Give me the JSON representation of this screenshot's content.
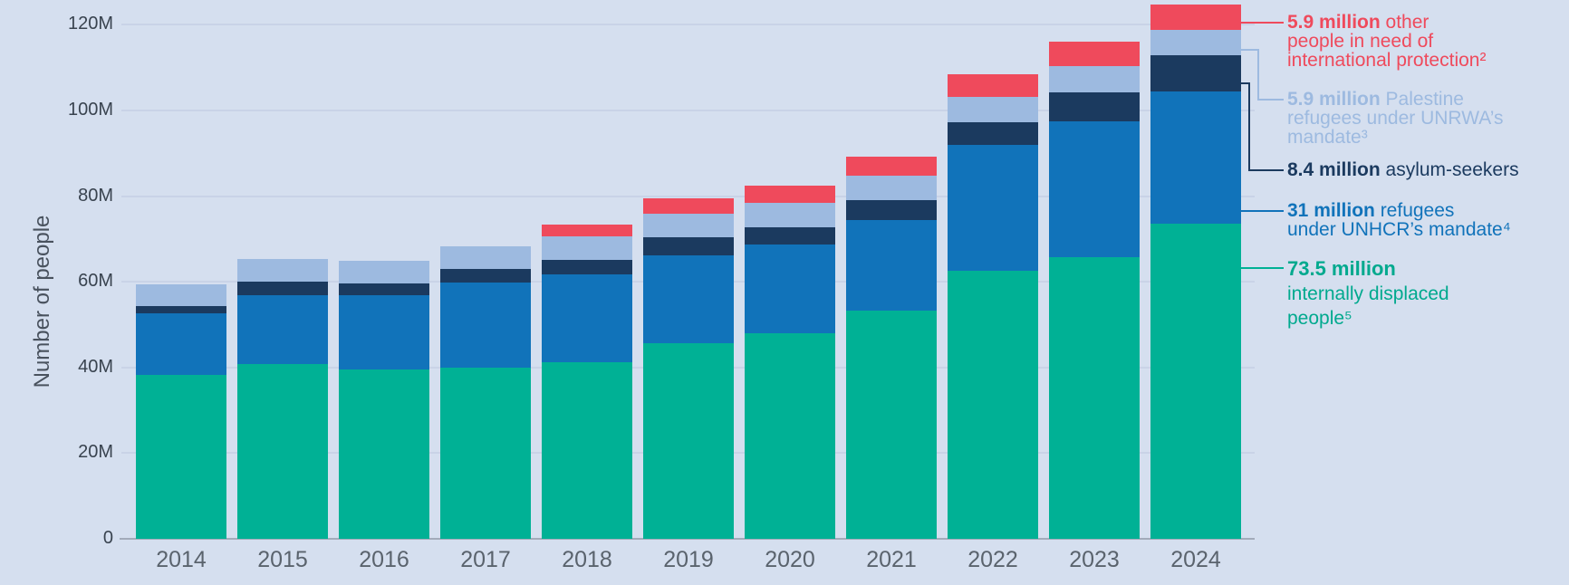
{
  "colors": {
    "background": "#D5DFEF",
    "gridline": "#C9D3E7",
    "axis_line": "#A3ABBA",
    "tick_text": "#39434F",
    "year_text": "#5A636D",
    "axis_label_text": "#49525E"
  },
  "chart_data": {
    "type": "bar",
    "stacked": true,
    "title": "",
    "xlabel": "",
    "ylabel": "Number of people",
    "unit": "millions of people",
    "ylim": [
      0,
      120
    ],
    "ytick_step": 20,
    "grid": true,
    "legend_position": "right",
    "categories": [
      "2014",
      "2015",
      "2016",
      "2017",
      "2018",
      "2019",
      "2020",
      "2021",
      "2022",
      "2023",
      "2024"
    ],
    "series": [
      {
        "id": "idps",
        "name": "Internally displaced people",
        "color": "#00B195",
        "values": [
          38.2,
          40.8,
          39.6,
          40.0,
          41.3,
          45.7,
          48.0,
          53.2,
          62.5,
          65.8,
          73.5
        ]
      },
      {
        "id": "unhcr",
        "name": "Refugees under UNHCR’s mandate",
        "color": "#1173BA",
        "values": [
          14.4,
          16.1,
          17.2,
          19.9,
          20.4,
          20.4,
          20.7,
          21.3,
          29.4,
          31.6,
          31.0
        ]
      },
      {
        "id": "asylum",
        "name": "Asylum-seekers",
        "color": "#1B3A5F",
        "values": [
          1.8,
          3.2,
          2.8,
          3.1,
          3.5,
          4.2,
          4.1,
          4.6,
          5.4,
          6.9,
          8.4
        ]
      },
      {
        "id": "unrwa",
        "name": "Palestine refugees under UNRWA’s mandate",
        "color": "#9DBAE0",
        "values": [
          5.1,
          5.2,
          5.3,
          5.4,
          5.5,
          5.6,
          5.7,
          5.8,
          5.9,
          6.0,
          5.9
        ]
      },
      {
        "id": "other",
        "name": "Other people in need of international protection",
        "color": "#EF4A5C",
        "values": [
          0,
          0,
          0,
          0,
          2.6,
          3.6,
          3.9,
          4.4,
          5.2,
          5.8,
          5.9
        ]
      }
    ]
  },
  "y_axis": {
    "label": "Number of people",
    "ticks": [
      "0",
      "20M",
      "40M",
      "60M",
      "80M",
      "100M",
      "120M"
    ]
  },
  "legend": {
    "items": [
      {
        "id": "other",
        "color": "#EF4A5C",
        "lines": [
          [
            {
              "text": "5.9 million",
              "bold": true
            },
            {
              "text": " other",
              "bold": false
            }
          ],
          [
            {
              "text": "people in need of",
              "bold": false
            }
          ],
          [
            {
              "text": "international protection²",
              "bold": false
            }
          ]
        ]
      },
      {
        "id": "unrwa",
        "color": "#9DBAE0",
        "lines": [
          [
            {
              "text": "5.9 million",
              "bold": true
            },
            {
              "text": " Palestine",
              "bold": false
            }
          ],
          [
            {
              "text": "refugees under UNRWA’s",
              "bold": false
            }
          ],
          [
            {
              "text": "mandate³",
              "bold": false
            }
          ]
        ]
      },
      {
        "id": "asylum",
        "color": "#1B3A5F",
        "lines": [
          [
            {
              "text": "8.4 million",
              "bold": true
            },
            {
              "text": " asylum-seekers",
              "bold": false
            }
          ]
        ]
      },
      {
        "id": "unhcr",
        "color": "#1173BA",
        "lines": [
          [
            {
              "text": "31 million",
              "bold": true
            },
            {
              "text": " refugees",
              "bold": false
            }
          ],
          [
            {
              "text": "under UNHCR’s mandate⁴",
              "bold": false
            }
          ]
        ]
      },
      {
        "id": "idps",
        "color": "#00A98E",
        "lines": [
          [
            {
              "text": "73.5 million",
              "bold": true
            }
          ],
          [
            {
              "text": "internally displaced",
              "bold": false
            }
          ],
          [
            {
              "text": "people⁵",
              "bold": false
            }
          ]
        ]
      }
    ]
  }
}
